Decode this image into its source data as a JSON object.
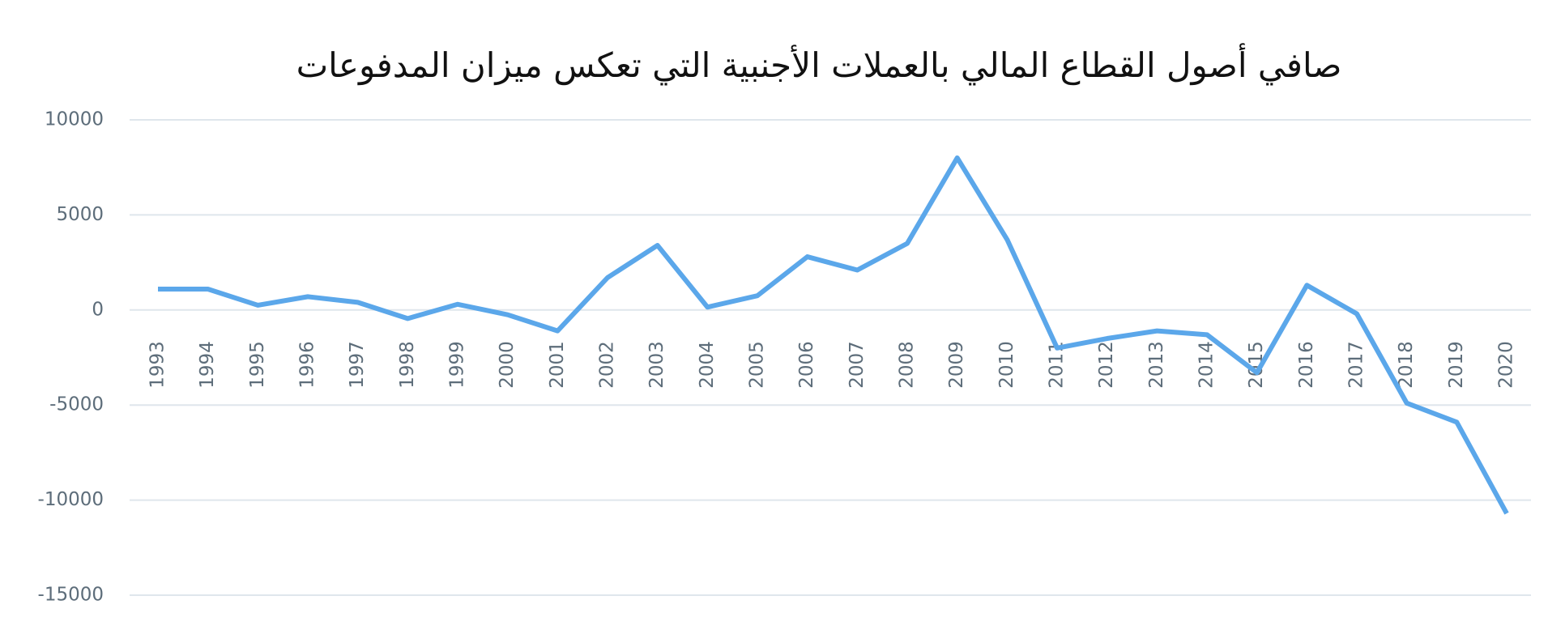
{
  "chart_data": {
    "type": "line",
    "title": "صافي أصول القطاع المالي بالعملات الأجنبية التي تعكس ميزان المدفوعات",
    "categories": [
      "1993",
      "1994",
      "1995",
      "1996",
      "1997",
      "1998",
      "1999",
      "2000",
      "2001",
      "2002",
      "2003",
      "2004",
      "2005",
      "2006",
      "2007",
      "2008",
      "2009",
      "2010",
      "2011",
      "2012",
      "2013",
      "2014",
      "2015",
      "2016",
      "2017",
      "2018",
      "2019",
      "2020"
    ],
    "series": [
      {
        "name": null,
        "color": "#5ba7ea",
        "values": [
          1100,
          1100,
          250,
          700,
          400,
          -450,
          300,
          -250,
          -1100,
          1700,
          3400,
          150,
          750,
          2800,
          2100,
          3500,
          8000,
          3700,
          -2000,
          -1500,
          -1100,
          -1300,
          -3300,
          1300,
          -200,
          -4900,
          -5900,
          -10700
        ]
      }
    ],
    "ylim": [
      -15000,
      10000
    ],
    "yticks": [
      -15000,
      -10000,
      -5000,
      0,
      5000,
      10000
    ],
    "grid": true
  }
}
